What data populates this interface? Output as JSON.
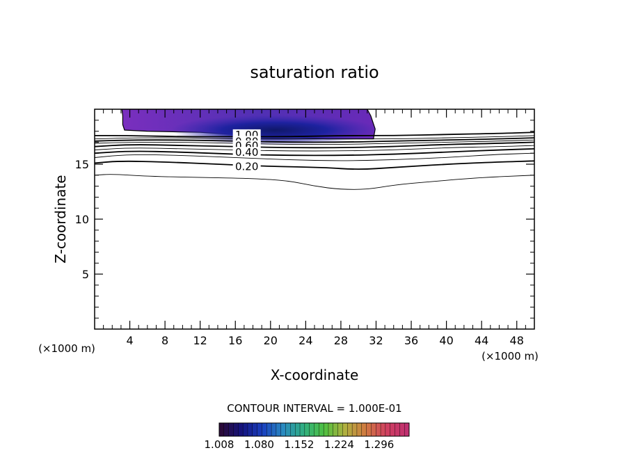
{
  "chart_data": {
    "type": "contour",
    "title": "saturation ratio",
    "xlabel": "X-coordinate",
    "ylabel": "Z-coordinate",
    "x_unit_left": "(×1000 m)",
    "x_unit_right": "(×1000 m)",
    "xlim": [
      0,
      50
    ],
    "ylim": [
      0,
      20
    ],
    "x_ticks": [
      "4",
      "8",
      "12",
      "16",
      "20",
      "24",
      "28",
      "32",
      "36",
      "40",
      "44",
      "48"
    ],
    "x_tick_values": [
      4,
      8,
      12,
      16,
      20,
      24,
      28,
      32,
      36,
      40,
      44,
      48
    ],
    "y_ticks": [
      "5",
      "10",
      "15"
    ],
    "y_tick_values": [
      5,
      10,
      15
    ],
    "contour_interval": "CONTOUR INTERVAL = 1.000E-01",
    "contour_labels": [
      {
        "text": "1.00",
        "x": 17.3,
        "y": 17.6
      },
      {
        "text": "0.80",
        "x": 17.3,
        "y": 17.0
      },
      {
        "text": "0.60",
        "x": 17.3,
        "y": 16.6
      },
      {
        "text": "0.40",
        "x": 17.3,
        "y": 16.0
      },
      {
        "text": "0.20",
        "x": 17.3,
        "y": 14.7
      }
    ],
    "contours": [
      {
        "level": 0.1,
        "bold": false,
        "points": [
          [
            0,
            14.0
          ],
          [
            2,
            14.1
          ],
          [
            6,
            13.9
          ],
          [
            12,
            13.8
          ],
          [
            18,
            13.7
          ],
          [
            22,
            13.5
          ],
          [
            25,
            13.0
          ],
          [
            28,
            12.7
          ],
          [
            31,
            12.7
          ],
          [
            34,
            13.1
          ],
          [
            38,
            13.4
          ],
          [
            44,
            13.8
          ],
          [
            50,
            14.0
          ]
        ]
      },
      {
        "level": 0.2,
        "bold": true,
        "points": [
          [
            0,
            15.1
          ],
          [
            3,
            15.3
          ],
          [
            8,
            15.2
          ],
          [
            14,
            15.0
          ],
          [
            20,
            14.8
          ],
          [
            26,
            14.7
          ],
          [
            30,
            14.5
          ],
          [
            34,
            14.7
          ],
          [
            40,
            15.0
          ],
          [
            46,
            15.2
          ],
          [
            50,
            15.3
          ]
        ]
      },
      {
        "level": 0.3,
        "bold": false,
        "points": [
          [
            0,
            15.6
          ],
          [
            4,
            15.9
          ],
          [
            10,
            15.8
          ],
          [
            16,
            15.6
          ],
          [
            22,
            15.4
          ],
          [
            28,
            15.3
          ],
          [
            34,
            15.4
          ],
          [
            40,
            15.6
          ],
          [
            46,
            15.9
          ],
          [
            50,
            16.0
          ]
        ]
      },
      {
        "level": 0.4,
        "bold": true,
        "points": [
          [
            0,
            16.0
          ],
          [
            4,
            16.2
          ],
          [
            10,
            16.1
          ],
          [
            16,
            15.9
          ],
          [
            22,
            15.8
          ],
          [
            28,
            15.8
          ],
          [
            34,
            15.9
          ],
          [
            40,
            16.1
          ],
          [
            46,
            16.3
          ],
          [
            50,
            16.4
          ]
        ]
      },
      {
        "level": 0.5,
        "bold": false,
        "points": [
          [
            0,
            16.3
          ],
          [
            4,
            16.5
          ],
          [
            10,
            16.4
          ],
          [
            16,
            16.3
          ],
          [
            22,
            16.2
          ],
          [
            28,
            16.2
          ],
          [
            34,
            16.3
          ],
          [
            40,
            16.5
          ],
          [
            46,
            16.6
          ],
          [
            50,
            16.7
          ]
        ]
      },
      {
        "level": 0.6,
        "bold": true,
        "points": [
          [
            0,
            16.6
          ],
          [
            4,
            16.8
          ],
          [
            10,
            16.7
          ],
          [
            16,
            16.6
          ],
          [
            22,
            16.5
          ],
          [
            28,
            16.5
          ],
          [
            34,
            16.6
          ],
          [
            40,
            16.8
          ],
          [
            46,
            16.9
          ],
          [
            50,
            17.0
          ]
        ]
      },
      {
        "level": 0.7,
        "bold": false,
        "points": [
          [
            0,
            16.9
          ],
          [
            4,
            17.0
          ],
          [
            10,
            17.0
          ],
          [
            16,
            16.9
          ],
          [
            22,
            16.8
          ],
          [
            28,
            16.8
          ],
          [
            34,
            16.9
          ],
          [
            40,
            17.0
          ],
          [
            46,
            17.1
          ],
          [
            50,
            17.2
          ]
        ]
      },
      {
        "level": 0.8,
        "bold": true,
        "points": [
          [
            0,
            17.1
          ],
          [
            4,
            17.2
          ],
          [
            10,
            17.2
          ],
          [
            16,
            17.1
          ],
          [
            22,
            17.0
          ],
          [
            28,
            17.0
          ],
          [
            34,
            17.1
          ],
          [
            40,
            17.2
          ],
          [
            46,
            17.3
          ],
          [
            50,
            17.4
          ]
        ]
      },
      {
        "level": 0.9,
        "bold": false,
        "points": [
          [
            0,
            17.3
          ],
          [
            4,
            17.4
          ],
          [
            10,
            17.4
          ],
          [
            16,
            17.3
          ],
          [
            22,
            17.3
          ],
          [
            28,
            17.3
          ],
          [
            34,
            17.3
          ],
          [
            40,
            17.4
          ],
          [
            46,
            17.5
          ],
          [
            50,
            17.6
          ]
        ]
      },
      {
        "level": 1.0,
        "bold": true,
        "points": [
          [
            0,
            17.6
          ],
          [
            4,
            17.6
          ],
          [
            10,
            17.5
          ],
          [
            16,
            17.5
          ],
          [
            22,
            17.5
          ],
          [
            28,
            17.6
          ],
          [
            34,
            17.6
          ],
          [
            40,
            17.7
          ],
          [
            46,
            17.8
          ],
          [
            50,
            17.9
          ]
        ]
      }
    ],
    "filled_region": {
      "outline": [
        [
          3.1,
          20
        ],
        [
          31.0,
          20
        ],
        [
          31.4,
          19.4
        ],
        [
          31.9,
          18.2
        ],
        [
          31.7,
          17.3
        ],
        [
          26.5,
          17.3
        ],
        [
          20.0,
          17.5
        ],
        [
          12.0,
          17.9
        ],
        [
          6.0,
          18.0
        ],
        [
          3.4,
          18.1
        ],
        [
          3.2,
          18.6
        ],
        [
          3.2,
          19.4
        ]
      ],
      "core": {
        "x": 20.5,
        "y": 18.1
      },
      "colors": [
        "#7a2fbe",
        "#5a2fb8",
        "#3c2aa8",
        "#22208e"
      ]
    },
    "colorbar": {
      "labels": [
        "1.008",
        "1.080",
        "1.152",
        "1.224",
        "1.296"
      ],
      "values": [
        1.008,
        1.08,
        1.152,
        1.224,
        1.296
      ],
      "range": [
        1.008,
        1.35
      ],
      "colors": [
        "#2a0a3a",
        "#141480",
        "#1a40c0",
        "#2a8ac0",
        "#30b080",
        "#50c040",
        "#b0b040",
        "#d07a40",
        "#d04060",
        "#c03070"
      ]
    }
  }
}
